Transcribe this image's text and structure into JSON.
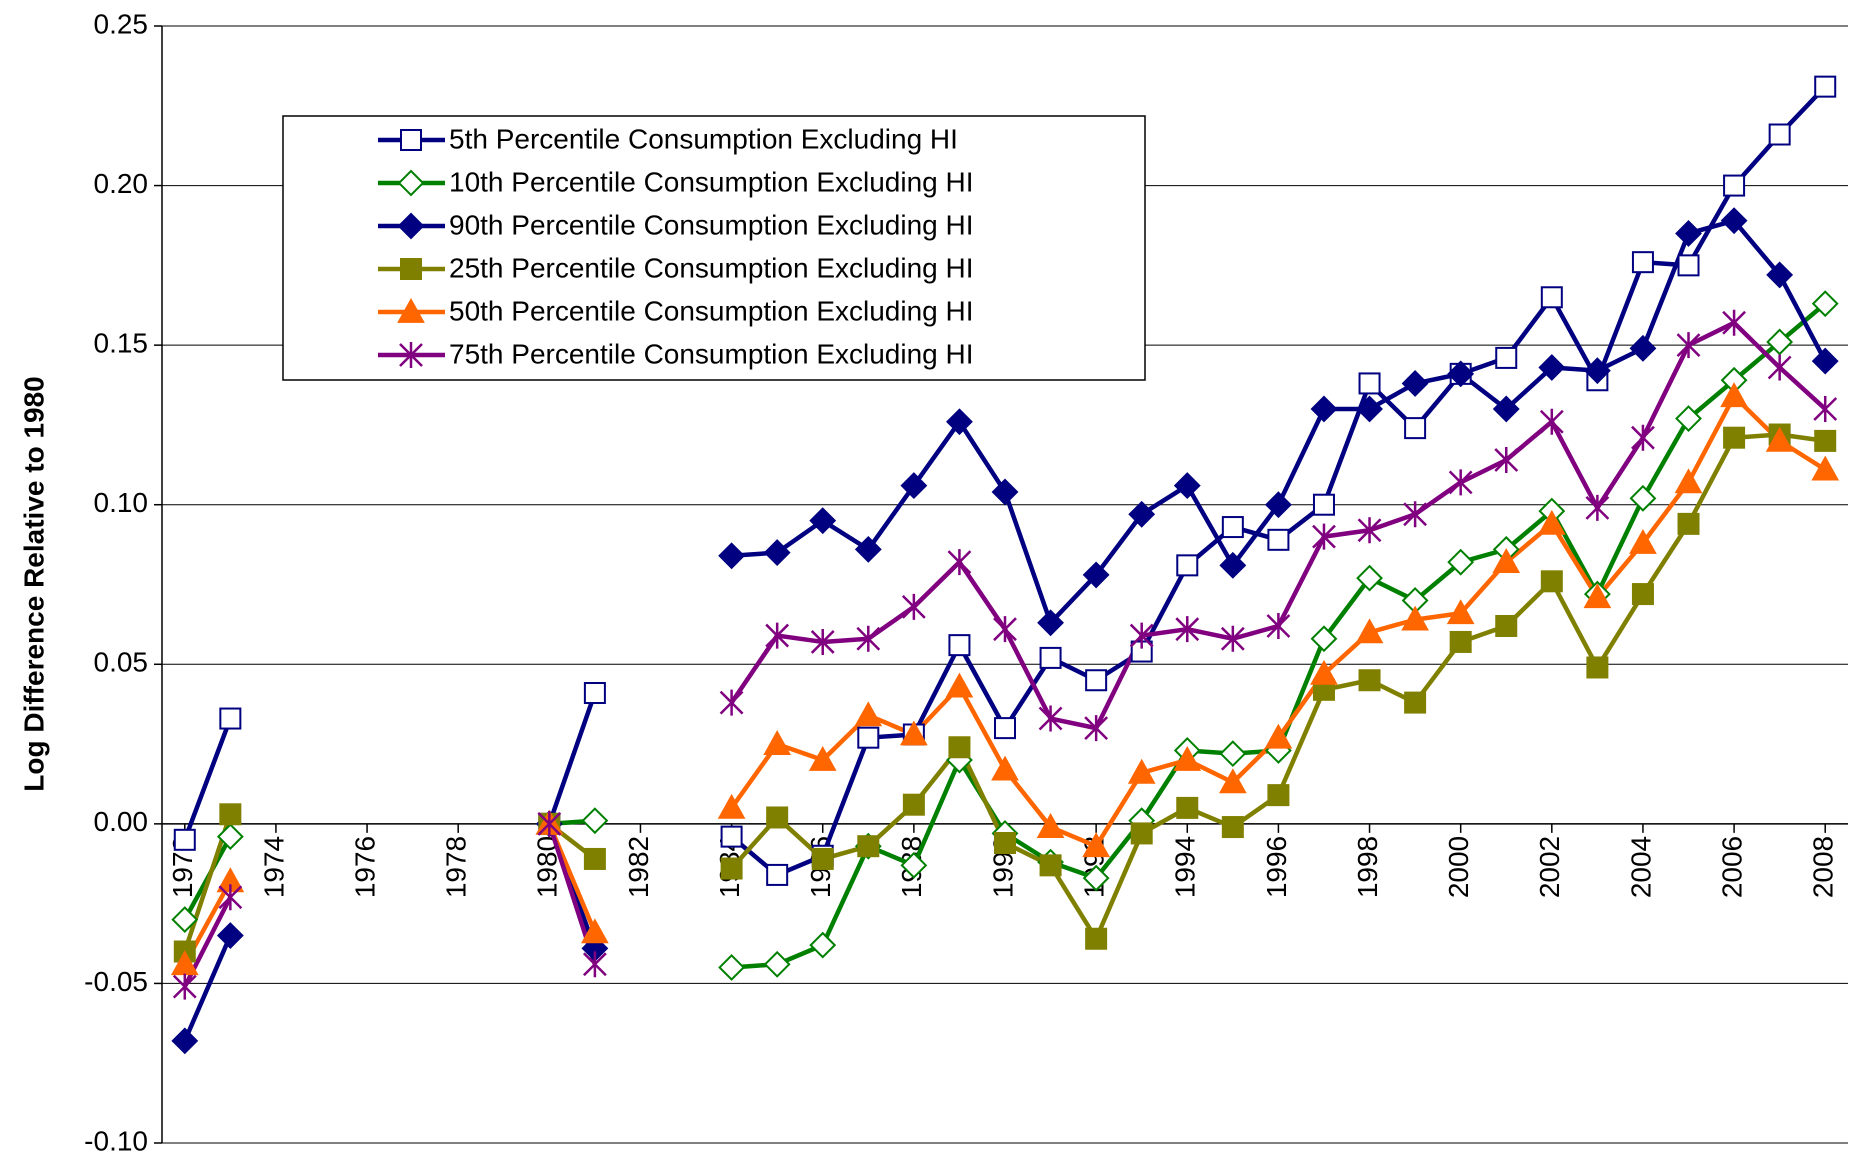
{
  "chart_data": {
    "type": "line",
    "y_label": "Log Difference Relative to 1980",
    "x": [
      1972,
      1973,
      1974,
      1975,
      1976,
      1977,
      1978,
      1979,
      1980,
      1981,
      1982,
      1983,
      1984,
      1985,
      1986,
      1987,
      1988,
      1989,
      1990,
      1991,
      1992,
      1993,
      1994,
      1995,
      1996,
      1997,
      1998,
      1999,
      2000,
      2001,
      2002,
      2003,
      2004,
      2005,
      2006,
      2007,
      2008
    ],
    "xlim": [
      1971.5,
      2008.5
    ],
    "xticks": [
      1972,
      1974,
      1976,
      1978,
      1980,
      1982,
      1984,
      1986,
      1988,
      1990,
      1992,
      1994,
      1996,
      1998,
      2000,
      2002,
      2004,
      2006,
      2008
    ],
    "ylim": [
      -0.1,
      0.25
    ],
    "yticks": [
      {
        "value": -0.1,
        "label": "-0.10"
      },
      -0.05,
      {
        "value": 0,
        "label": "0.00"
      },
      0.05,
      {
        "value": 0.1,
        "label": "0.10"
      },
      0.15,
      {
        "value": 0.2,
        "label": "0.20"
      },
      0.25
    ],
    "grid": true,
    "series": [
      {
        "name": "5th Percentile Consumption Excluding HI",
        "color": "#000080",
        "marker": "square-open",
        "values": [
          -0.005,
          0.033,
          null,
          null,
          null,
          null,
          null,
          null,
          0.0,
          0.041,
          null,
          null,
          -0.004,
          -0.016,
          -0.01,
          0.027,
          0.028,
          0.056,
          0.03,
          0.052,
          0.045,
          0.054,
          0.081,
          0.093,
          0.089,
          0.1,
          0.138,
          0.124,
          0.141,
          0.146,
          0.165,
          0.139,
          0.176,
          0.175,
          0.2,
          0.216,
          0.231
        ]
      },
      {
        "name": "10th Percentile Consumption Excluding HI",
        "color": "#008000",
        "marker": "diamond-open",
        "values": [
          -0.03,
          -0.004,
          null,
          null,
          null,
          null,
          null,
          null,
          0.0,
          0.001,
          null,
          null,
          -0.045,
          -0.044,
          -0.038,
          -0.007,
          -0.013,
          0.02,
          -0.003,
          -0.012,
          -0.017,
          0.001,
          0.023,
          0.022,
          0.023,
          0.058,
          0.077,
          0.07,
          0.082,
          0.086,
          0.098,
          0.072,
          0.102,
          0.127,
          0.139,
          0.151,
          0.163
        ]
      },
      {
        "name": "90th Percentile Consumption Excluding HI",
        "color": "#000080",
        "marker": "diamond",
        "values": [
          -0.068,
          -0.035,
          null,
          null,
          null,
          null,
          null,
          null,
          0.0,
          -0.039,
          null,
          null,
          0.084,
          0.085,
          0.095,
          0.086,
          0.106,
          0.126,
          0.104,
          0.063,
          0.078,
          0.097,
          0.106,
          0.081,
          0.1,
          0.13,
          0.13,
          0.138,
          0.141,
          0.13,
          0.143,
          0.142,
          0.149,
          0.185,
          0.189,
          0.172,
          0.145
        ]
      },
      {
        "name": "25th Percentile Consumption Excluding HI",
        "color": "#808000",
        "marker": "square",
        "values": [
          -0.04,
          0.003,
          null,
          null,
          null,
          null,
          null,
          null,
          0.0,
          -0.011,
          null,
          null,
          -0.014,
          0.002,
          -0.011,
          -0.007,
          0.006,
          0.024,
          -0.006,
          -0.013,
          -0.036,
          -0.003,
          0.005,
          -0.001,
          0.009,
          0.042,
          0.045,
          0.038,
          0.057,
          0.062,
          0.076,
          0.049,
          0.072,
          0.094,
          0.121,
          0.122,
          0.12
        ]
      },
      {
        "name": "50th Percentile Consumption Excluding HI",
        "color": "#FF6600",
        "marker": "triangle",
        "values": [
          -0.044,
          -0.018,
          null,
          null,
          null,
          null,
          null,
          null,
          0.0,
          -0.034,
          null,
          null,
          0.005,
          0.025,
          0.02,
          0.034,
          0.028,
          0.043,
          0.017,
          -0.001,
          -0.007,
          0.016,
          0.02,
          0.013,
          0.027,
          0.047,
          0.06,
          0.064,
          0.066,
          0.082,
          0.094,
          0.071,
          0.088,
          0.107,
          0.134,
          0.12,
          0.111
        ]
      },
      {
        "name": "75th Percentile Consumption Excluding HI",
        "color": "#800080",
        "marker": "star",
        "values": [
          -0.051,
          -0.023,
          null,
          null,
          null,
          null,
          null,
          null,
          0.0,
          -0.044,
          null,
          null,
          0.038,
          0.059,
          0.057,
          0.058,
          0.068,
          0.082,
          0.061,
          0.033,
          0.03,
          0.059,
          0.061,
          0.058,
          0.062,
          0.09,
          0.092,
          0.097,
          0.107,
          0.114,
          0.126,
          0.099,
          0.121,
          0.15,
          0.157,
          0.143,
          0.13
        ]
      }
    ]
  }
}
